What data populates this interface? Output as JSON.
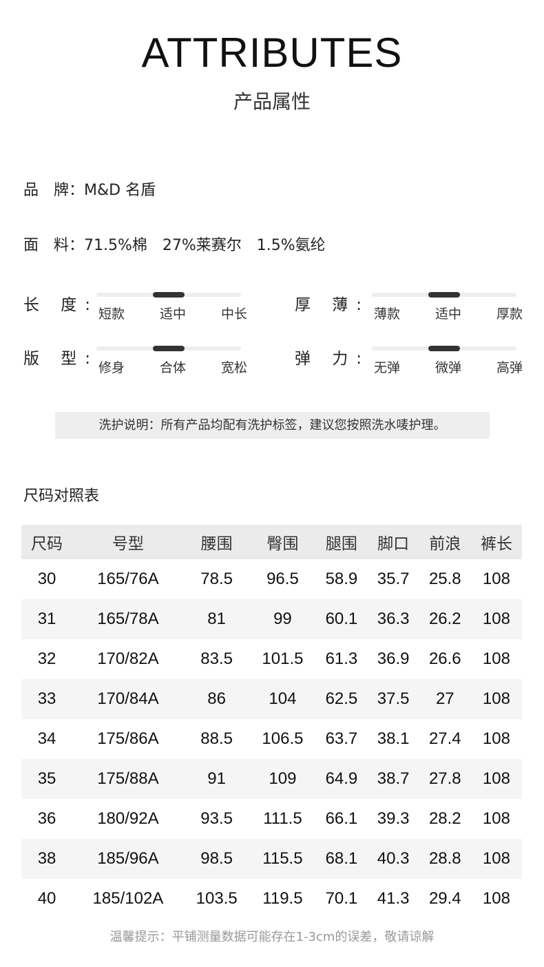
{
  "title": "ATTRIBUTES",
  "subtitle": "产品属性",
  "brand": "品　牌：M&D 名盾",
  "fabric": "面　料：71.5%棉　27%莱赛尔　1.5%氨纶",
  "attributes": [
    {
      "label": "长 度:",
      "options": [
        "短款",
        "适中",
        "中长"
      ],
      "selected": "适中"
    },
    {
      "label": "厚 薄:",
      "options": [
        "薄款",
        "适中",
        "厚款"
      ],
      "selected": "适中"
    },
    {
      "label": "版 型:",
      "options": [
        "修身",
        "合体",
        "宽松"
      ],
      "selected": "合体"
    },
    {
      "label": "弹 力:",
      "options": [
        "无弹",
        "微弹",
        "高弹"
      ],
      "selected": "微弹"
    }
  ],
  "care": "洗护说明：所有产品均配有洗护标签，建议您按照洗水唛护理。",
  "size_title": "尺码对照表",
  "table": {
    "headers": [
      "尺码",
      "号型",
      "腰围",
      "臀围",
      "腿围",
      "脚口",
      "前浪",
      "裤长"
    ],
    "rows": [
      [
        "30",
        "165/76A",
        "78.5",
        "96.5",
        "58.9",
        "35.7",
        "25.8",
        "108"
      ],
      [
        "31",
        "165/78A",
        "81",
        "99",
        "60.1",
        "36.3",
        "26.2",
        "108"
      ],
      [
        "32",
        "170/82A",
        "83.5",
        "101.5",
        "61.3",
        "36.9",
        "26.6",
        "108"
      ],
      [
        "33",
        "170/84A",
        "86",
        "104",
        "62.5",
        "37.5",
        "27",
        "108"
      ],
      [
        "34",
        "175/86A",
        "88.5",
        "106.5",
        "63.7",
        "38.1",
        "27.4",
        "108"
      ],
      [
        "35",
        "175/88A",
        "91",
        "109",
        "64.9",
        "38.7",
        "27.8",
        "108"
      ],
      [
        "36",
        "180/92A",
        "93.5",
        "111.5",
        "66.1",
        "39.3",
        "28.2",
        "108"
      ],
      [
        "38",
        "185/96A",
        "98.5",
        "115.5",
        "68.1",
        "40.3",
        "28.8",
        "108"
      ],
      [
        "40",
        "185/102A",
        "103.5",
        "119.5",
        "70.1",
        "41.3",
        "29.4",
        "108"
      ]
    ]
  },
  "tip": "温馨提示：平铺测量数据可能存在1-3cm的误差，敬请谅解"
}
